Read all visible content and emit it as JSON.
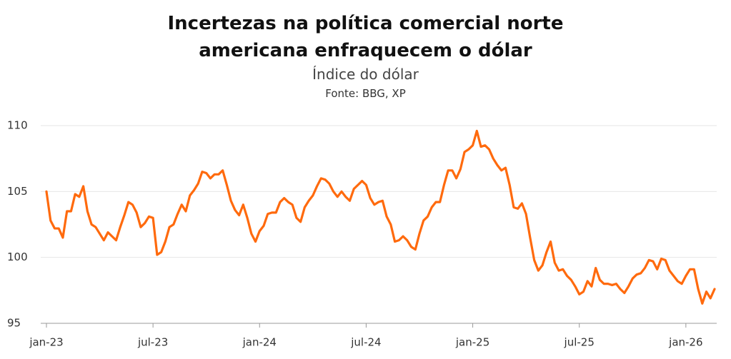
{
  "chart_data": {
    "type": "line",
    "title": "Incertezas na política comercial norte americana enfraquecem o dólar",
    "subtitle": "Índice do dólar",
    "source": "Fonte: BBG, XP",
    "color": "#ff6a0d",
    "grid": true,
    "ylim": [
      95,
      110
    ],
    "yticks": [
      95,
      100,
      105,
      110
    ],
    "categories": [
      "jan-23",
      null,
      null,
      null,
      null,
      null,
      null,
      null,
      null,
      null,
      null,
      null,
      null,
      null,
      null,
      null,
      null,
      null,
      null,
      null,
      null,
      null,
      null,
      null,
      null,
      null,
      "jul-23",
      null,
      null,
      null,
      null,
      null,
      null,
      null,
      null,
      null,
      null,
      null,
      null,
      null,
      null,
      null,
      null,
      null,
      null,
      null,
      null,
      null,
      null,
      null,
      null,
      null,
      "jan-24",
      null,
      null,
      null,
      null,
      null,
      null,
      null,
      null,
      null,
      null,
      null,
      null,
      null,
      null,
      null,
      null,
      null,
      null,
      null,
      null,
      null,
      null,
      null,
      null,
      null,
      "jul-24",
      null,
      null,
      null,
      null,
      null,
      null,
      null,
      null,
      null,
      null,
      null,
      null,
      null,
      null,
      null,
      null,
      null,
      null,
      null,
      null,
      null,
      null,
      null,
      null,
      null,
      "jan-25",
      null,
      null,
      null,
      null,
      null,
      null,
      null,
      null,
      null,
      null,
      null,
      null,
      null,
      null,
      null,
      null,
      null,
      null,
      null,
      null,
      null,
      null,
      null,
      null,
      null,
      "jul-25",
      null,
      null,
      null,
      null,
      null,
      null,
      null,
      null,
      null,
      null,
      null,
      null,
      null,
      null,
      null,
      null,
      null,
      null,
      null,
      null,
      null,
      null,
      null,
      null,
      null,
      "jan-26",
      null,
      null,
      null,
      null,
      null,
      null,
      null
    ],
    "values": [
      105.0,
      102.8,
      102.2,
      102.2,
      101.5,
      103.5,
      103.5,
      104.8,
      104.6,
      105.4,
      103.5,
      102.5,
      102.3,
      101.8,
      101.3,
      101.9,
      101.6,
      101.3,
      102.3,
      103.2,
      104.2,
      104.0,
      103.4,
      102.3,
      102.6,
      103.1,
      103.0,
      100.2,
      100.4,
      101.2,
      102.3,
      102.5,
      103.3,
      104.0,
      103.5,
      104.7,
      105.1,
      105.6,
      106.5,
      106.4,
      106.0,
      106.3,
      106.3,
      106.6,
      105.5,
      104.3,
      103.6,
      103.2,
      104.0,
      103.0,
      101.8,
      101.2,
      102.0,
      102.4,
      103.3,
      103.4,
      103.4,
      104.2,
      104.5,
      104.2,
      104.0,
      103.0,
      102.7,
      103.8,
      104.3,
      104.7,
      105.4,
      106.0,
      105.9,
      105.6,
      105.0,
      104.6,
      105.0,
      104.6,
      104.3,
      105.2,
      105.5,
      105.8,
      105.5,
      104.5,
      104.0,
      104.2,
      104.3,
      103.1,
      102.5,
      101.2,
      101.3,
      101.6,
      101.3,
      100.8,
      100.6,
      101.8,
      102.8,
      103.1,
      103.8,
      104.2,
      104.2,
      105.5,
      106.6,
      106.6,
      106.0,
      106.7,
      108.0,
      108.2,
      108.5,
      109.6,
      108.4,
      108.5,
      108.2,
      107.5,
      107.0,
      106.6,
      106.8,
      105.5,
      103.8,
      103.7,
      104.1,
      103.3,
      101.5,
      99.8,
      99.0,
      99.4,
      100.4,
      101.2,
      99.6,
      99.0,
      99.1,
      98.6,
      98.3,
      97.8,
      97.2,
      97.4,
      98.2,
      97.8,
      99.2,
      98.3,
      98.0,
      98.0,
      97.9,
      98.0,
      97.6,
      97.3,
      97.8,
      98.4,
      98.7,
      98.8,
      99.2,
      99.8,
      99.7,
      99.1,
      99.9,
      99.8,
      99.0,
      98.6,
      98.2,
      98.0,
      98.6,
      99.1,
      99.1,
      97.6,
      96.5,
      97.4,
      96.9,
      97.6
    ]
  }
}
